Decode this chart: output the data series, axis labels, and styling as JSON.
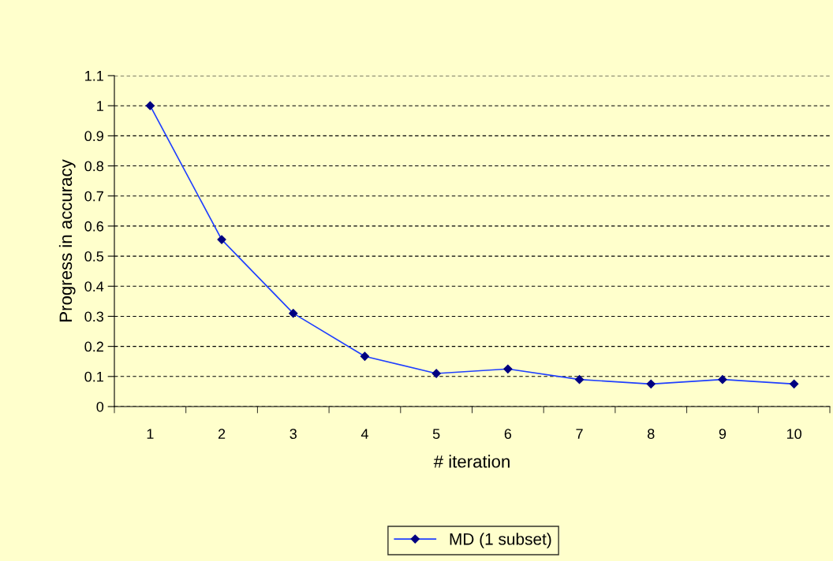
{
  "chart_data": {
    "type": "line",
    "xlabel": "# iteration",
    "ylabel": "Progress in accuracy",
    "categories": [
      "1",
      "2",
      "3",
      "4",
      "5",
      "6",
      "7",
      "8",
      "9",
      "10"
    ],
    "series": [
      {
        "name": "MD (1 subset)",
        "color": "#1f3fff",
        "values": [
          1.0,
          0.555,
          0.31,
          0.167,
          0.11,
          0.125,
          0.09,
          0.075,
          0.09,
          0.075
        ]
      }
    ],
    "ylim": [
      0,
      1.1
    ],
    "yticks": [
      0,
      0.1,
      0.2,
      0.3,
      0.4,
      0.5,
      0.6,
      0.7,
      0.8,
      0.9,
      1,
      1.1
    ],
    "grid": "y",
    "legend": "bottom",
    "marker": "diamond",
    "line_style": "solid"
  }
}
